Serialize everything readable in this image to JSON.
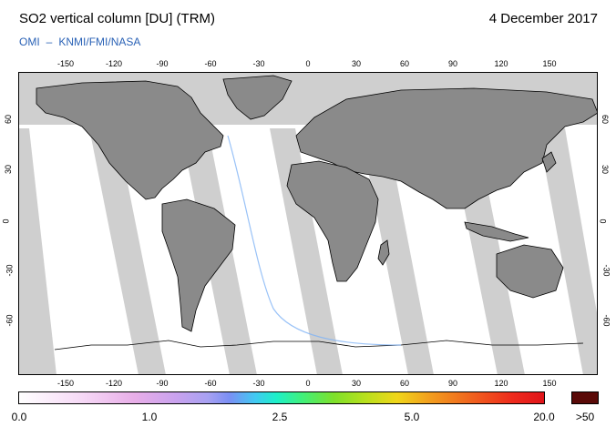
{
  "header": {
    "title": "SO2 vertical column [DU] (TRM)",
    "date": "4 December 2017",
    "credit_left": "OMI",
    "credit_dash": "–",
    "credit_right": "KNMI/FMI/NASA"
  },
  "map": {
    "projection": "equirectangular",
    "lon_ticks": [
      "-150",
      "-120",
      "-90",
      "-60",
      "-30",
      "0",
      "30",
      "60",
      "90",
      "120",
      "150"
    ],
    "lat_ticks": [
      "60",
      "30",
      "0",
      "-30",
      "-60"
    ],
    "colors": {
      "land": "#8a8a8a",
      "no_data": "#cfcfcf",
      "data_background": "#ffffff",
      "coastline": "#000000"
    }
  },
  "colorbar": {
    "labels": [
      "0.0",
      "1.0",
      "2.5",
      "5.0",
      "20.0",
      ">50"
    ],
    "overflow_color": "#5a0a08"
  }
}
